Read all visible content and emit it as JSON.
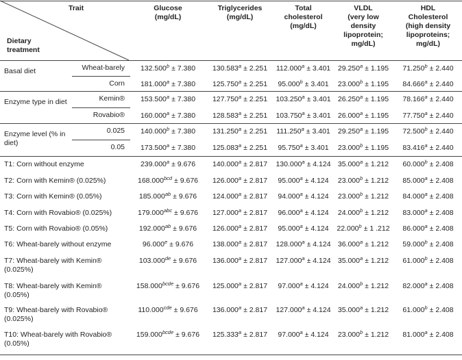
{
  "header": {
    "trait": "Trait",
    "treatment": "Dietary treatment",
    "columns": [
      [
        "Glucose",
        "(mg/dL)"
      ],
      [
        "Triglycerides",
        "(mg/dL)"
      ],
      [
        "Total",
        "cholesterol",
        "(mg/dL)"
      ],
      [
        "VLDL",
        "(very low",
        "density",
        "lipoprotein;",
        "mg/dL)"
      ],
      [
        "HDL",
        "Cholesterol",
        "(high density",
        "lipoproteins;",
        "mg/dL)"
      ]
    ]
  },
  "groups": [
    {
      "label": "Basal diet",
      "rows": [
        {
          "label": "Wheat-barely",
          "cells": [
            [
              "132.500",
              "b",
              "± 7.380"
            ],
            [
              "130.583",
              "a",
              "± 2.251"
            ],
            [
              "112.000",
              "a",
              "± 3.401"
            ],
            [
              "29.250",
              "a",
              "± 1.195"
            ],
            [
              "71.250",
              "b",
              "± 2.440"
            ]
          ]
        },
        {
          "label": "Corn",
          "cells": [
            [
              "181.000",
              "a",
              "± 7.380"
            ],
            [
              "125.750",
              "a",
              "± 2.251"
            ],
            [
              "95.000",
              "b",
              "± 3.401"
            ],
            [
              "23.000",
              "b",
              "± 1.195"
            ],
            [
              "84.666",
              "a",
              "± 2.440"
            ]
          ]
        }
      ]
    },
    {
      "label": "Enzyme type in diet",
      "rows": [
        {
          "label": "Kemin®",
          "cells": [
            [
              "153.500",
              "a",
              "± 7.380"
            ],
            [
              "127.750",
              "a",
              "± 2.251"
            ],
            [
              "103.250",
              "a",
              "± 3.401"
            ],
            [
              "26.250",
              "a",
              "± 1.195"
            ],
            [
              "78.166",
              "a",
              "± 2.440"
            ]
          ]
        },
        {
          "label": "Rovabio®",
          "cells": [
            [
              "160.000",
              "a",
              "± 7.380"
            ],
            [
              "128.583",
              "a",
              "± 2.251"
            ],
            [
              "103.750",
              "a",
              "± 3.401"
            ],
            [
              "26.000",
              "a",
              "± 1.195"
            ],
            [
              "77.750",
              "a",
              "± 2.440"
            ]
          ]
        }
      ]
    },
    {
      "label": "Enzyme level (% in diet)",
      "rows": [
        {
          "label": "0.025",
          "cells": [
            [
              "140.000",
              "b",
              "± 7.380"
            ],
            [
              "131.250",
              "a",
              "± 2.251"
            ],
            [
              "111.250",
              "a",
              "± 3.401"
            ],
            [
              "29.250",
              "a",
              "± 1.195"
            ],
            [
              "72.500",
              "b",
              "± 2.440"
            ]
          ]
        },
        {
          "label": "0.05",
          "cells": [
            [
              "173.500",
              "a",
              "± 7.380"
            ],
            [
              "125.083",
              "a",
              "± 2.251"
            ],
            [
              "95.750",
              "a",
              "± 3.401"
            ],
            [
              "23.000",
              "b",
              "± 1.195"
            ],
            [
              "83.416",
              "a",
              "± 2.440"
            ]
          ]
        }
      ]
    }
  ],
  "treatments": [
    {
      "label": "T1: Corn without enzyme",
      "cells": [
        [
          "239.000",
          "a",
          "± 9.676"
        ],
        [
          "140.000",
          "a",
          "± 2.817"
        ],
        [
          "130.000",
          "a",
          "± 4.124"
        ],
        [
          "35.000",
          "a",
          "± 1.212"
        ],
        [
          "60.000",
          "b",
          "± 2.408"
        ]
      ]
    },
    {
      "label": "T2: Corn with Kemin® (0.025%)",
      "cells": [
        [
          "168.000",
          "bcd",
          "± 9.676"
        ],
        [
          "126.000",
          "a",
          "± 2.817"
        ],
        [
          "95.000",
          "a",
          "± 4.124"
        ],
        [
          "23.000",
          "b",
          "± 1.212"
        ],
        [
          "85.000",
          "a",
          "± 2.408"
        ]
      ]
    },
    {
      "label": "T3: Corn with Kemin® (0.05%)",
      "cells": [
        [
          "185.000",
          "ab",
          "± 9.676"
        ],
        [
          "124.000",
          "a",
          "± 2.817"
        ],
        [
          "94.000",
          "a",
          "± 4.124"
        ],
        [
          "23.000",
          "b",
          "± 1.212"
        ],
        [
          "84.000",
          "a",
          "± 2.408"
        ]
      ]
    },
    {
      "label": "T4: Corn with Rovabio® (0.025%)",
      "cells": [
        [
          "179.000",
          "abc",
          "± 9.676"
        ],
        [
          "127.000",
          "a",
          "± 2.817"
        ],
        [
          "96.000",
          "a",
          "± 4.124"
        ],
        [
          "24.000",
          "b",
          "± 1.212"
        ],
        [
          "83.000",
          "a",
          "± 2.408"
        ]
      ]
    },
    {
      "label": "T5: Corn with Rovabio® (0.05%)",
      "cells": [
        [
          "192.000",
          "ab",
          "± 9.676"
        ],
        [
          "126.000",
          "a",
          "± 2.817"
        ],
        [
          "95.000",
          "a",
          "± 4.124"
        ],
        [
          "22.000",
          "b",
          "± 1 .212"
        ],
        [
          "86.000",
          "a",
          "± 2.408"
        ]
      ]
    },
    {
      "label": "T6: Wheat-barely without enzyme",
      "cells": [
        [
          "96.000",
          "e",
          "± 9.676"
        ],
        [
          "138.000",
          "a",
          "± 2.817"
        ],
        [
          "128.000",
          "a",
          "± 4.124"
        ],
        [
          "36.000",
          "a",
          "± 1.212"
        ],
        [
          "59.000",
          "b",
          "± 2.408"
        ]
      ]
    },
    {
      "label": "T7: Wheat-barely with Kemin® (0.025%)",
      "cells": [
        [
          "103.000",
          "de",
          "± 9.676"
        ],
        [
          "136.000",
          "a",
          "± 2.817"
        ],
        [
          "127.000",
          "a",
          "± 4.124"
        ],
        [
          "35.000",
          "a",
          "± 1.212"
        ],
        [
          "61.000",
          "b",
          "± 2.408"
        ]
      ]
    },
    {
      "label": "T8: Wheat-barely with Kemin® (0.05%)",
      "cells": [
        [
          "158.000",
          "bcde",
          "± 9.676"
        ],
        [
          "125.000",
          "a",
          "± 2.817"
        ],
        [
          "97.000",
          "a",
          "± 4.124"
        ],
        [
          "24.000",
          "b",
          "± 1.212"
        ],
        [
          "82.000",
          "a",
          "± 2.408"
        ]
      ]
    },
    {
      "label": "T9: Wheat-barely with Rovabio® (0.025%)",
      "cells": [
        [
          "110.000",
          "cde",
          "± 9.676"
        ],
        [
          "136.000",
          "a",
          "± 2.817"
        ],
        [
          "127.000",
          "a",
          "± 4.124"
        ],
        [
          "35.000",
          "a",
          "± 1.212"
        ],
        [
          "61.000",
          "b",
          "± 2.408"
        ]
      ]
    },
    {
      "label": "T10: Wheat-barely with Rovabio® (0.05%)",
      "cells": [
        [
          "159.000",
          "bcde",
          "± 9.676"
        ],
        [
          "125.333",
          "a",
          "± 2.817"
        ],
        [
          "97.000",
          "a",
          "± 4.124"
        ],
        [
          "23.000",
          "b",
          "± 1.212"
        ],
        [
          "81.000",
          "a",
          "± 2.408"
        ]
      ]
    }
  ]
}
